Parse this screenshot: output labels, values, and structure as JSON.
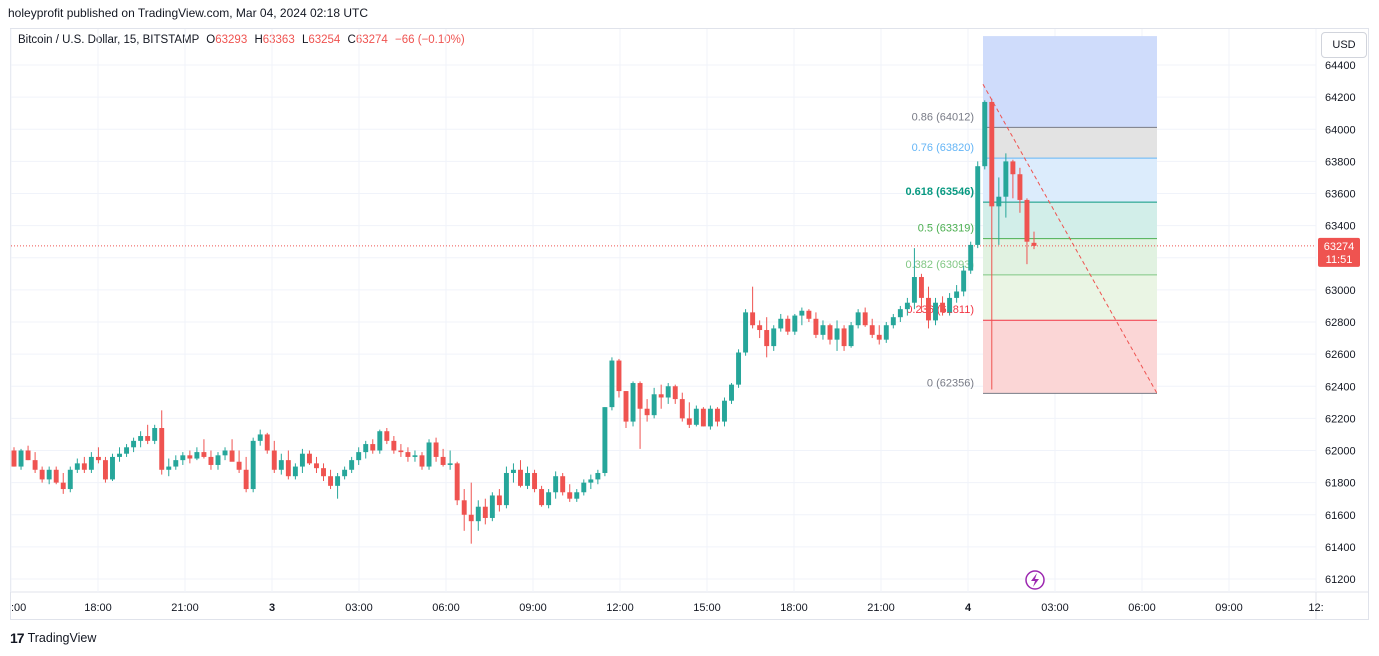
{
  "header": {
    "published": "holeyprofit published on TradingView.com, Mar 04, 2024 02:18 UTC"
  },
  "legend": {
    "symbol": "Bitcoin / U.S. Dollar, 15, BITSTAMP",
    "o_label": "O",
    "o_value": "63293",
    "h_label": "H",
    "h_value": "63363",
    "l_label": "L",
    "l_value": "63254",
    "c_label": "C",
    "c_value": "63274",
    "change": "−66 (−0.10%)"
  },
  "currency_button": "USD",
  "price_tag": {
    "price": "63274",
    "countdown": "11:51"
  },
  "footer": {
    "logo_mark": "17",
    "brand": "TradingView"
  },
  "colors": {
    "up": "#26a69a",
    "down": "#ef5350",
    "price_tag": "#ef5350"
  },
  "chart_data": {
    "type": "candlestick",
    "y_ticks": [
      61200,
      61400,
      61600,
      61800,
      62000,
      62200,
      62400,
      62600,
      62800,
      63000,
      63200,
      63400,
      63600,
      63800,
      64000,
      64200,
      64400
    ],
    "ylim": [
      61000,
      64550
    ],
    "x_ticks": [
      ":00",
      "18:00",
      "21:00",
      "3",
      "03:00",
      "06:00",
      "09:00",
      "12:00",
      "15:00",
      "18:00",
      "21:00",
      "4",
      "03:00",
      "06:00",
      "09:00",
      "12:"
    ],
    "current_price": 63274,
    "fib_levels": [
      {
        "ratio": "0.86",
        "price": "64012",
        "label": "0.86 (64012)",
        "color": "#787b86",
        "value": 64012
      },
      {
        "ratio": "0.76",
        "price": "63820",
        "label": "0.76 (63820)",
        "color": "#64b5f6",
        "value": 63820
      },
      {
        "ratio": "0.618",
        "price": "63546",
        "label": "0.618 (63546)",
        "color": "#089981",
        "value": 63546
      },
      {
        "ratio": "0.5",
        "price": "63319",
        "label": "0.5 (63319)",
        "color": "#4caf50",
        "value": 63319
      },
      {
        "ratio": "0.382",
        "price": "63093",
        "label": "0.382 (63093)",
        "color": "#81c784",
        "value": 63093
      },
      {
        "ratio": "0.236",
        "price": "62811",
        "label": "0.236 (62811)",
        "color": "#f23645",
        "value": 62811
      },
      {
        "ratio": "0",
        "price": "62356",
        "label": "0 (62356)",
        "color": "#787b86",
        "value": 62356
      }
    ],
    "fib_top_zone": 64580,
    "candles": [
      [
        62000,
        62020,
        61900,
        61900
      ],
      [
        61900,
        62010,
        61880,
        62000
      ],
      [
        62000,
        62030,
        61940,
        61940
      ],
      [
        61940,
        61990,
        61860,
        61880
      ],
      [
        61880,
        61900,
        61800,
        61820
      ],
      [
        61820,
        61900,
        61790,
        61880
      ],
      [
        61880,
        61900,
        61790,
        61800
      ],
      [
        61800,
        61860,
        61730,
        61760
      ],
      [
        61760,
        61900,
        61740,
        61880
      ],
      [
        61880,
        61950,
        61860,
        61920
      ],
      [
        61920,
        61960,
        61860,
        61880
      ],
      [
        61880,
        61990,
        61860,
        61960
      ],
      [
        61960,
        62020,
        61920,
        61940
      ],
      [
        61940,
        61960,
        61800,
        61820
      ],
      [
        61820,
        61980,
        61810,
        61960
      ],
      [
        61960,
        62020,
        61930,
        61980
      ],
      [
        61980,
        62040,
        61960,
        62020
      ],
      [
        62020,
        62080,
        61990,
        62060
      ],
      [
        62060,
        62120,
        62020,
        62090
      ],
      [
        62090,
        62160,
        62040,
        62060
      ],
      [
        62060,
        62160,
        62040,
        62140
      ],
      [
        62140,
        62250,
        61850,
        61880
      ],
      [
        61880,
        61950,
        61840,
        61900
      ],
      [
        61900,
        61970,
        61880,
        61940
      ],
      [
        61940,
        61990,
        61910,
        61970
      ],
      [
        61970,
        62000,
        61920,
        61950
      ],
      [
        61950,
        62020,
        61940,
        61990
      ],
      [
        61990,
        62070,
        61950,
        61960
      ],
      [
        61960,
        62000,
        61880,
        61910
      ],
      [
        61910,
        61990,
        61880,
        61970
      ],
      [
        61970,
        62020,
        61940,
        62000
      ],
      [
        62000,
        62070,
        61960,
        61930
      ],
      [
        61930,
        62000,
        61860,
        61880
      ],
      [
        61880,
        61960,
        61740,
        61760
      ],
      [
        61760,
        62080,
        61740,
        62060
      ],
      [
        62060,
        62130,
        62030,
        62100
      ],
      [
        62100,
        62110,
        61980,
        62000
      ],
      [
        62000,
        62060,
        61860,
        61880
      ],
      [
        61880,
        61980,
        61850,
        61940
      ],
      [
        61940,
        62000,
        61820,
        61840
      ],
      [
        61840,
        61920,
        61820,
        61900
      ],
      [
        61900,
        62010,
        61860,
        61980
      ],
      [
        61980,
        62000,
        61910,
        61920
      ],
      [
        61920,
        61960,
        61860,
        61890
      ],
      [
        61890,
        61920,
        61810,
        61840
      ],
      [
        61840,
        61880,
        61760,
        61780
      ],
      [
        61780,
        61860,
        61700,
        61840
      ],
      [
        61840,
        61900,
        61820,
        61880
      ],
      [
        61880,
        61960,
        61860,
        61940
      ],
      [
        61940,
        62020,
        61910,
        61990
      ],
      [
        61990,
        62060,
        61950,
        62040
      ],
      [
        62040,
        62070,
        61980,
        62000
      ],
      [
        62000,
        62130,
        61980,
        62120
      ],
      [
        62120,
        62140,
        62040,
        62060
      ],
      [
        62060,
        62090,
        61980,
        62000
      ],
      [
        62000,
        62040,
        61960,
        61990
      ],
      [
        61990,
        62020,
        61930,
        61960
      ],
      [
        61960,
        62000,
        61930,
        61970
      ],
      [
        61970,
        61990,
        61880,
        61900
      ],
      [
        61900,
        62070,
        61880,
        62050
      ],
      [
        62050,
        62080,
        61930,
        61960
      ],
      [
        61960,
        62010,
        61900,
        61910
      ],
      [
        61910,
        62000,
        61880,
        61920
      ],
      [
        61920,
        61930,
        61660,
        61690
      ],
      [
        61690,
        61760,
        61500,
        61600
      ],
      [
        61600,
        61800,
        61420,
        61560
      ],
      [
        61560,
        61690,
        61500,
        61650
      ],
      [
        61650,
        61700,
        61540,
        61580
      ],
      [
        61580,
        61740,
        61560,
        61720
      ],
      [
        61720,
        61760,
        61620,
        61660
      ],
      [
        61660,
        61900,
        61640,
        61860
      ],
      [
        61860,
        61920,
        61800,
        61880
      ],
      [
        61880,
        61940,
        61770,
        61780
      ],
      [
        61780,
        61900,
        61760,
        61860
      ],
      [
        61860,
        61880,
        61740,
        61760
      ],
      [
        61760,
        61780,
        61650,
        61660
      ],
      [
        61660,
        61760,
        61640,
        61740
      ],
      [
        61740,
        61870,
        61700,
        61840
      ],
      [
        61840,
        61860,
        61720,
        61740
      ],
      [
        61740,
        61790,
        61680,
        61700
      ],
      [
        61700,
        61760,
        61680,
        61740
      ],
      [
        61740,
        61820,
        61720,
        61800
      ],
      [
        61800,
        61850,
        61760,
        61820
      ],
      [
        61820,
        61880,
        61790,
        61860
      ],
      [
        61860,
        62270,
        61840,
        62270
      ],
      [
        62270,
        62580,
        62250,
        62560
      ],
      [
        62560,
        62570,
        62330,
        62370
      ],
      [
        62370,
        62370,
        62140,
        62180
      ],
      [
        62180,
        62430,
        62150,
        62420
      ],
      [
        62420,
        62430,
        62010,
        62260
      ],
      [
        62260,
        62320,
        62180,
        62220
      ],
      [
        62220,
        62390,
        62200,
        62350
      ],
      [
        62350,
        62410,
        62260,
        62330
      ],
      [
        62330,
        62420,
        62290,
        62400
      ],
      [
        62400,
        62410,
        62290,
        62320
      ],
      [
        62320,
        62360,
        62180,
        62200
      ],
      [
        62200,
        62300,
        62140,
        62160
      ],
      [
        62160,
        62280,
        62150,
        62260
      ],
      [
        62260,
        62270,
        62150,
        62150
      ],
      [
        62150,
        62280,
        62130,
        62260
      ],
      [
        62260,
        62270,
        62150,
        62180
      ],
      [
        62180,
        62330,
        62150,
        62310
      ],
      [
        62310,
        62420,
        62290,
        62410
      ],
      [
        62410,
        62630,
        62390,
        62610
      ],
      [
        62610,
        62880,
        62590,
        62860
      ],
      [
        62860,
        63020,
        62760,
        62780
      ],
      [
        62780,
        62810,
        62700,
        62750
      ],
      [
        62750,
        62830,
        62580,
        62650
      ],
      [
        62650,
        62780,
        62620,
        62760
      ],
      [
        62760,
        62850,
        62740,
        62820
      ],
      [
        62820,
        62840,
        62720,
        62740
      ],
      [
        62740,
        62850,
        62720,
        62840
      ],
      [
        62840,
        62890,
        62780,
        62870
      ],
      [
        62870,
        62880,
        62800,
        62820
      ],
      [
        62820,
        62860,
        62700,
        62720
      ],
      [
        62720,
        62810,
        62690,
        62780
      ],
      [
        62780,
        62790,
        62660,
        62690
      ],
      [
        62690,
        62810,
        62620,
        62760
      ],
      [
        62760,
        62780,
        62620,
        62650
      ],
      [
        62650,
        62800,
        62640,
        62780
      ],
      [
        62780,
        62880,
        62760,
        62860
      ],
      [
        62860,
        62890,
        62770,
        62780
      ],
      [
        62780,
        62820,
        62700,
        62720
      ],
      [
        62720,
        62780,
        62660,
        62690
      ],
      [
        62690,
        62800,
        62670,
        62780
      ],
      [
        62780,
        62850,
        62760,
        62830
      ],
      [
        62830,
        62900,
        62800,
        62880
      ],
      [
        62880,
        62950,
        62840,
        62920
      ],
      [
        62920,
        63260,
        62880,
        63080
      ],
      [
        63080,
        63100,
        62860,
        62950
      ],
      [
        62950,
        63020,
        62760,
        62810
      ],
      [
        62810,
        62950,
        62780,
        62920
      ],
      [
        62920,
        62960,
        62840,
        62860
      ],
      [
        62860,
        62980,
        62840,
        62950
      ],
      [
        62950,
        63030,
        62920,
        62990
      ],
      [
        62990,
        63150,
        62960,
        63120
      ],
      [
        63120,
        63300,
        63100,
        63280
      ],
      [
        63280,
        63800,
        63260,
        63770
      ],
      [
        63770,
        64180,
        63750,
        64170
      ],
      [
        64170,
        64190,
        62380,
        63520
      ],
      [
        63520,
        63700,
        63280,
        63580
      ],
      [
        63580,
        63850,
        63450,
        63800
      ],
      [
        63800,
        63810,
        63570,
        63720
      ],
      [
        63720,
        63760,
        63480,
        63560
      ],
      [
        63560,
        63570,
        63160,
        63300
      ],
      [
        63293,
        63363,
        63254,
        63274
      ]
    ]
  }
}
